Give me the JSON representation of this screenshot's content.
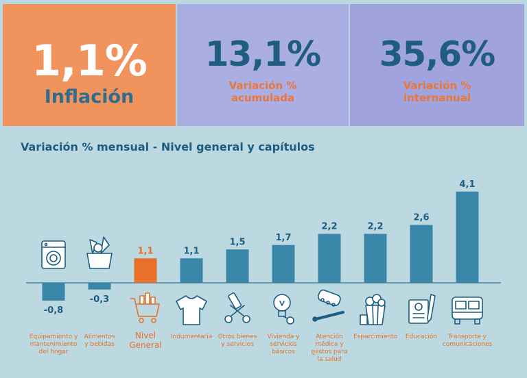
{
  "kpis": [
    {
      "value": "1,1%",
      "label_line1": "Inflación",
      "label_line2": ""
    },
    {
      "value": "13,1%",
      "label_line1": "Variación %",
      "label_line2": "acumulada"
    },
    {
      "value": "35,6%",
      "label_line1": "Variación %",
      "label_line2": "internanual"
    }
  ],
  "colors": {
    "accent_orange": "#e8702a",
    "bar_blue": "#3a86a8",
    "kpi_text_blue": "#1f5d80",
    "background": "#bcd9e2"
  },
  "chart_data": {
    "type": "bar",
    "title": "Variación % mensual - Nivel general y capítulos",
    "xlabel": "",
    "ylabel": "",
    "categories": [
      [
        "Equipamiento y",
        "mantenimiento",
        "del hogar"
      ],
      [
        "Alimentos",
        "y bebidas"
      ],
      [
        "Nivel",
        "General"
      ],
      [
        "Indumentaria"
      ],
      [
        "Otros bienes",
        "y servicios"
      ],
      [
        "Vivienda y",
        "servicios",
        "básicos"
      ],
      [
        "Atención",
        "médica y",
        "gastos para",
        "la salud"
      ],
      [
        "Esparcimiento"
      ],
      [
        "Educación"
      ],
      [
        "Transporte y",
        "comunicaciones"
      ]
    ],
    "values": [
      -0.8,
      -0.3,
      1.1,
      1.1,
      1.5,
      1.7,
      2.2,
      2.2,
      2.6,
      4.1
    ],
    "value_labels": [
      "-0,8",
      "-0,3",
      "1,1",
      "1,1",
      "1,5",
      "1,7",
      "2,2",
      "2,2",
      "2,6",
      "4,1"
    ],
    "highlight_index": 2,
    "icons": [
      "washing-machine-icon",
      "grocery-bag-icon",
      "shopping-cart-icon",
      "tshirt-icon",
      "scissors-icon",
      "lightbulb-key-icon",
      "pills-thermometer-icon",
      "popcorn-icon",
      "notebook-pen-icon",
      "bus-icon"
    ],
    "ylim": [
      -1,
      4.5
    ],
    "grid": false
  }
}
